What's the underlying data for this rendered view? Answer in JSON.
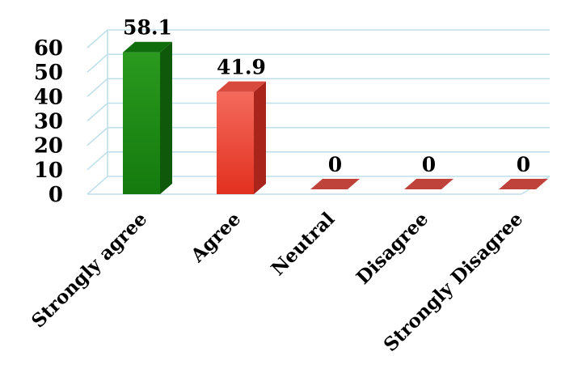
{
  "chart_data": {
    "type": "bar",
    "title": "",
    "xlabel": "",
    "ylabel": "",
    "categories": [
      "Strongly agree",
      "Agree",
      "Neutral",
      "Disagree",
      "Strongly Disagree"
    ],
    "values": [
      58.1,
      41.9,
      0,
      0,
      0
    ],
    "data_labels": [
      "58.1",
      "41.9",
      "0",
      "0",
      "0"
    ],
    "ylim": [
      0,
      60
    ],
    "yticks": [
      "0",
      "10",
      "20",
      "30",
      "40",
      "50",
      "60"
    ],
    "ytick_values": [
      0,
      10,
      20,
      30,
      40,
      50,
      60
    ],
    "grid": true,
    "legend": "none",
    "colors": {
      "strongly_agree": "#1e8a14",
      "agree": "#ee3b2c",
      "zero_bars": "#c0433b",
      "gridlines": "#bfe0ea"
    }
  }
}
